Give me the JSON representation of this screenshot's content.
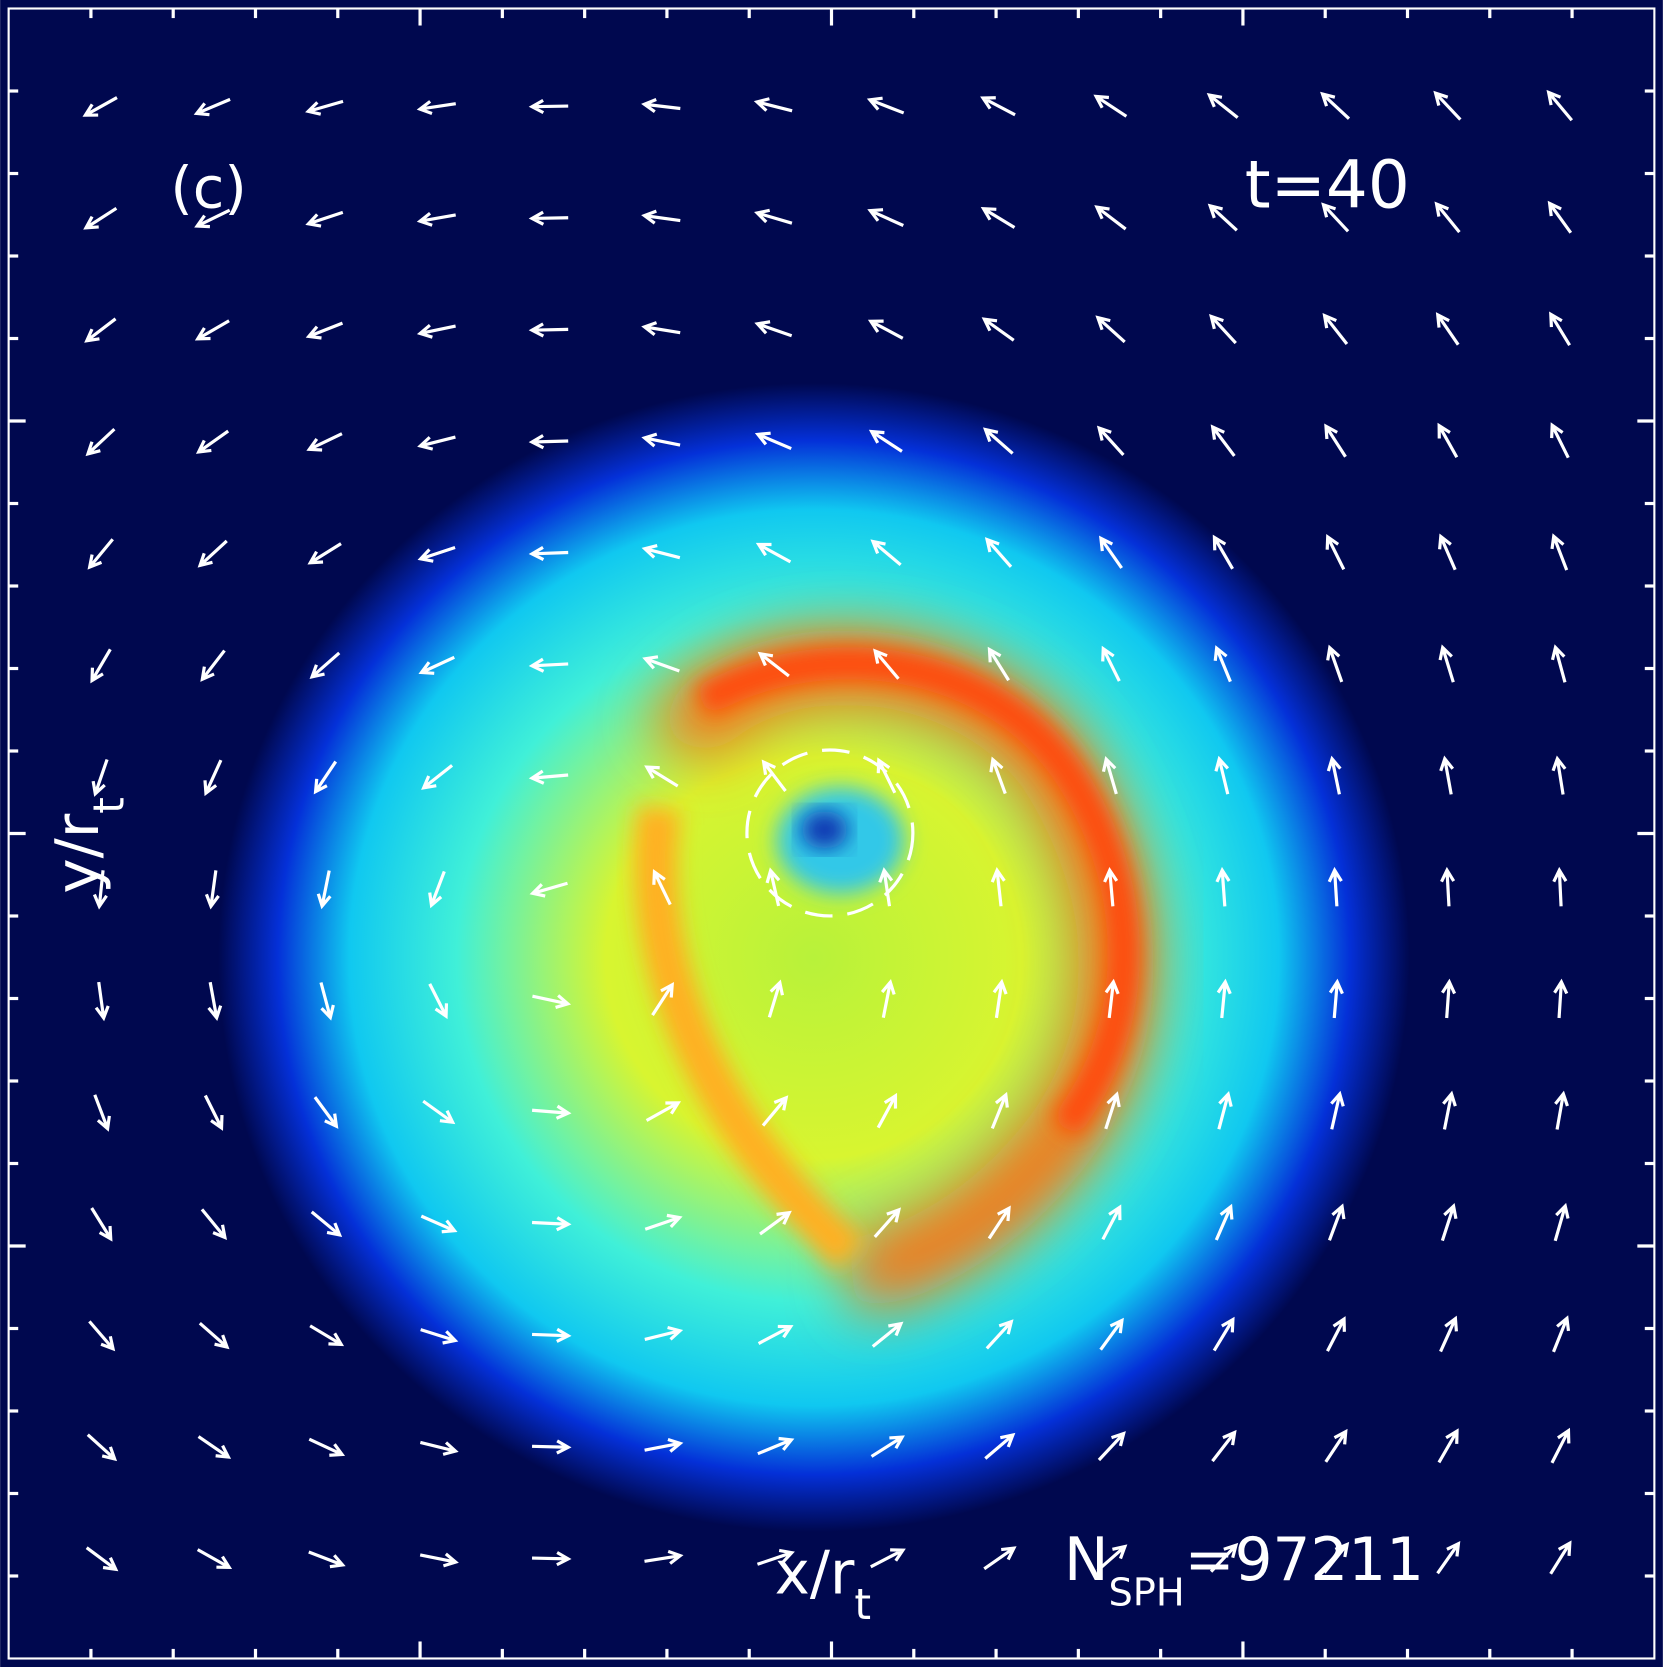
{
  "panel_label": "(c)",
  "time_label": "t=40",
  "x_axis": {
    "base": "x/r",
    "subscript": "t"
  },
  "y_axis": {
    "base": "y/r",
    "subscript": "t"
  },
  "particle_count": {
    "base": "N",
    "subscript": "SPH",
    "text": "=97211"
  }
}
